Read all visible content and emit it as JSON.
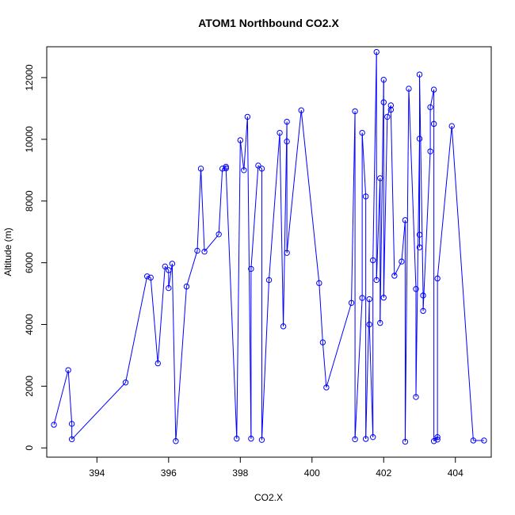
{
  "chart_data": {
    "type": "line",
    "title": "ATOM1 Northbound CO2.X",
    "xlabel": "CO2.X",
    "ylabel": "Altitude (m)",
    "xlim": [
      392.6,
      405.0
    ],
    "ylim": [
      -300,
      13000
    ],
    "xticks": [
      394,
      396,
      398,
      400,
      402,
      404
    ],
    "yticks": [
      0,
      2000,
      4000,
      6000,
      8000,
      10000,
      12000
    ],
    "grid": false,
    "series": [
      {
        "color": "#0000ff",
        "marker": "open-circle",
        "points": [
          {
            "x": 392.8,
            "y": 750
          },
          {
            "x": 393.2,
            "y": 2520
          },
          {
            "x": 393.3,
            "y": 780
          },
          {
            "x": 393.3,
            "y": 280
          },
          {
            "x": 394.8,
            "y": 2120
          },
          {
            "x": 395.4,
            "y": 5560
          },
          {
            "x": 395.5,
            "y": 5520
          },
          {
            "x": 395.7,
            "y": 2740
          },
          {
            "x": 395.9,
            "y": 5880
          },
          {
            "x": 396.0,
            "y": 5760
          },
          {
            "x": 396.0,
            "y": 5180
          },
          {
            "x": 396.1,
            "y": 5970
          },
          {
            "x": 396.2,
            "y": 220
          },
          {
            "x": 396.5,
            "y": 5230
          },
          {
            "x": 396.8,
            "y": 6390
          },
          {
            "x": 396.9,
            "y": 9050
          },
          {
            "x": 397.0,
            "y": 6360
          },
          {
            "x": 397.4,
            "y": 6920
          },
          {
            "x": 397.5,
            "y": 9050
          },
          {
            "x": 397.6,
            "y": 9110
          },
          {
            "x": 397.6,
            "y": 9060
          },
          {
            "x": 397.9,
            "y": 300
          },
          {
            "x": 398.0,
            "y": 9970
          },
          {
            "x": 398.1,
            "y": 9000
          },
          {
            "x": 398.2,
            "y": 10730
          },
          {
            "x": 398.3,
            "y": 300
          },
          {
            "x": 398.3,
            "y": 5800
          },
          {
            "x": 398.5,
            "y": 9150
          },
          {
            "x": 398.6,
            "y": 9050
          },
          {
            "x": 398.6,
            "y": 260
          },
          {
            "x": 398.8,
            "y": 5440
          },
          {
            "x": 399.1,
            "y": 10210
          },
          {
            "x": 399.2,
            "y": 3940
          },
          {
            "x": 399.3,
            "y": 10570
          },
          {
            "x": 399.3,
            "y": 9930
          },
          {
            "x": 399.3,
            "y": 6320
          },
          {
            "x": 399.7,
            "y": 10940
          },
          {
            "x": 400.2,
            "y": 5340
          },
          {
            "x": 400.3,
            "y": 3420
          },
          {
            "x": 400.4,
            "y": 1960
          },
          {
            "x": 401.1,
            "y": 4700
          },
          {
            "x": 401.2,
            "y": 10910
          },
          {
            "x": 401.2,
            "y": 280
          },
          {
            "x": 401.4,
            "y": 4860
          },
          {
            "x": 401.4,
            "y": 10210
          },
          {
            "x": 401.5,
            "y": 8150
          },
          {
            "x": 401.5,
            "y": 290
          },
          {
            "x": 401.6,
            "y": 4820
          },
          {
            "x": 401.6,
            "y": 4000
          },
          {
            "x": 401.7,
            "y": 350
          },
          {
            "x": 401.7,
            "y": 6080
          },
          {
            "x": 401.8,
            "y": 12830
          },
          {
            "x": 401.8,
            "y": 5440
          },
          {
            "x": 401.9,
            "y": 8740
          },
          {
            "x": 401.9,
            "y": 4050
          },
          {
            "x": 402.0,
            "y": 11930
          },
          {
            "x": 402.0,
            "y": 11200
          },
          {
            "x": 402.0,
            "y": 4870
          },
          {
            "x": 402.1,
            "y": 10730
          },
          {
            "x": 402.2,
            "y": 11100
          },
          {
            "x": 402.2,
            "y": 10960
          },
          {
            "x": 402.3,
            "y": 5580
          },
          {
            "x": 402.5,
            "y": 6040
          },
          {
            "x": 402.6,
            "y": 7380
          },
          {
            "x": 402.6,
            "y": 200
          },
          {
            "x": 402.7,
            "y": 11640
          },
          {
            "x": 402.9,
            "y": 5150
          },
          {
            "x": 402.9,
            "y": 1650
          },
          {
            "x": 403.0,
            "y": 10020
          },
          {
            "x": 403.0,
            "y": 6910
          },
          {
            "x": 403.0,
            "y": 6500
          },
          {
            "x": 403.0,
            "y": 12100
          },
          {
            "x": 403.1,
            "y": 4940
          },
          {
            "x": 403.1,
            "y": 4440
          },
          {
            "x": 403.3,
            "y": 9610
          },
          {
            "x": 403.3,
            "y": 11040
          },
          {
            "x": 403.4,
            "y": 11610
          },
          {
            "x": 403.4,
            "y": 10500
          },
          {
            "x": 403.4,
            "y": 220
          },
          {
            "x": 403.5,
            "y": 350
          },
          {
            "x": 403.5,
            "y": 270
          },
          {
            "x": 403.5,
            "y": 5490
          },
          {
            "x": 403.9,
            "y": 10430
          },
          {
            "x": 404.5,
            "y": 240
          },
          {
            "x": 404.8,
            "y": 240
          }
        ]
      }
    ]
  }
}
